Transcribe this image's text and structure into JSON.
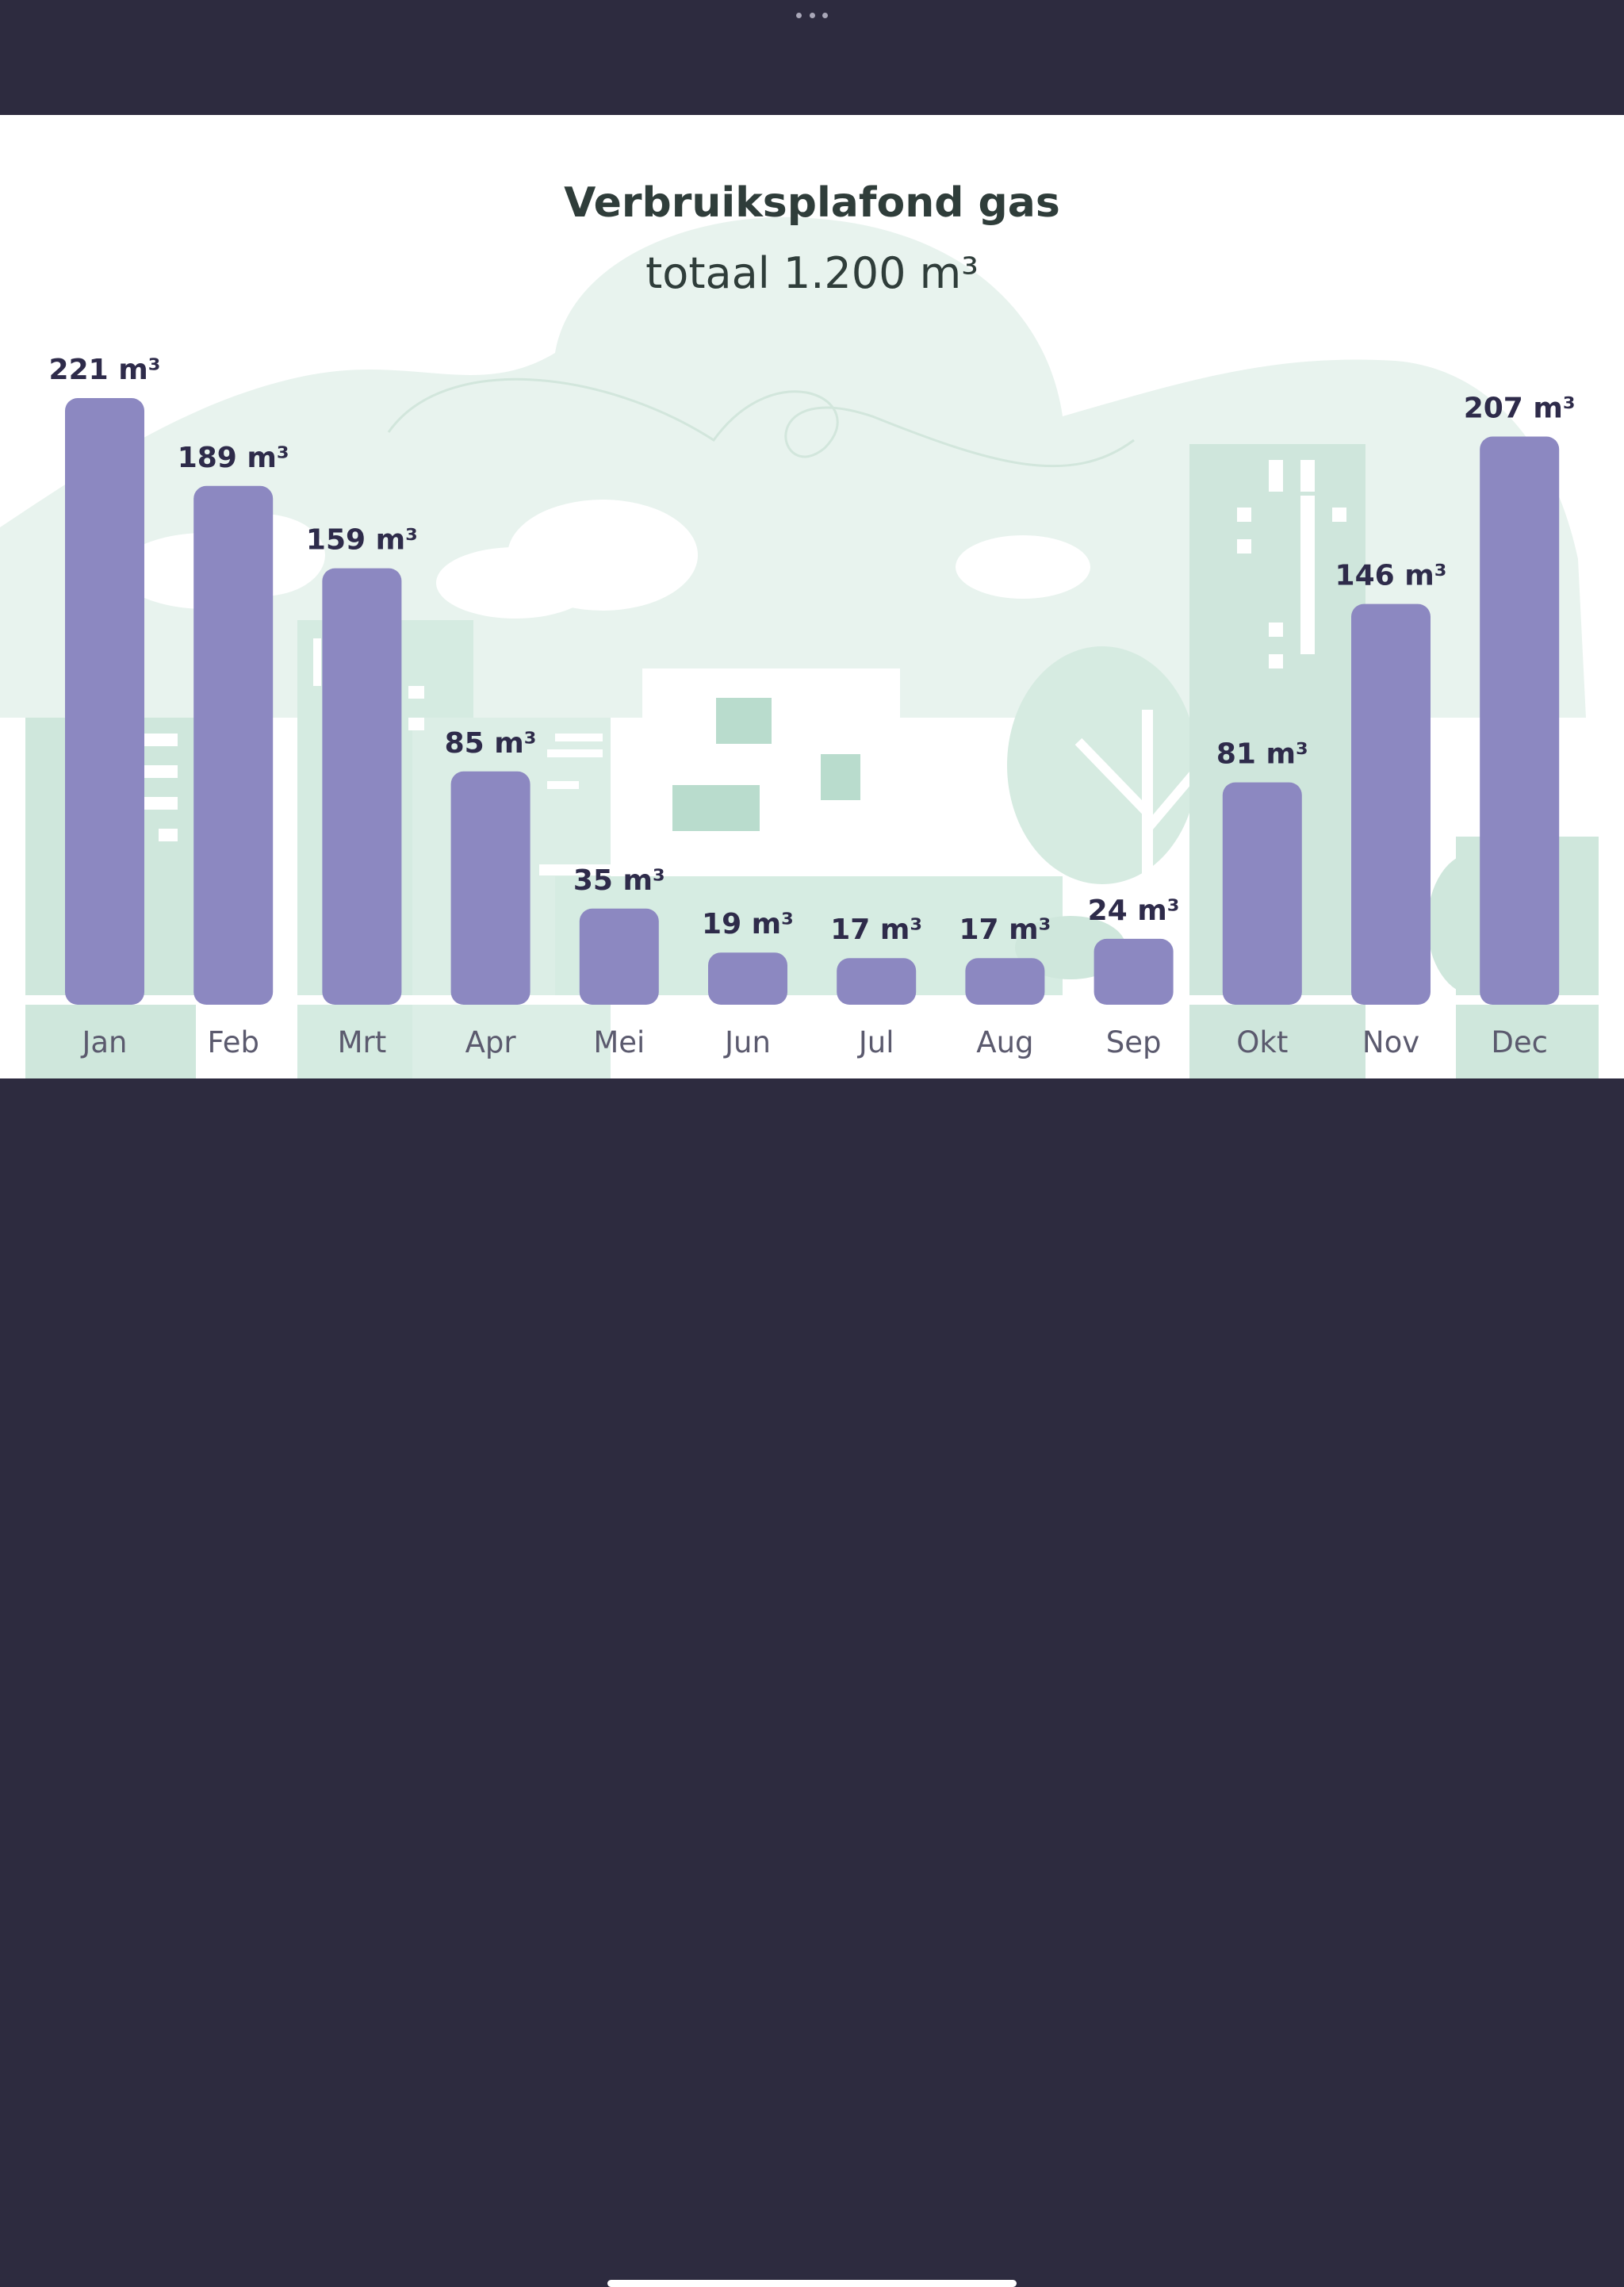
{
  "colors": {
    "frame": "#2d2b3f",
    "bar": "#8c88c1",
    "scenery_light": "#e6f2ec",
    "scenery_mid": "#cde6dc",
    "scenery_dark": "#b6dccd",
    "title": "#2f3d3a",
    "value_label": "#2e2b4a",
    "month_label": "#5b5a6e"
  },
  "chart_data": {
    "type": "bar",
    "title": "Verbruiksplafond gas",
    "subtitle": "totaal 1.200 m³",
    "unit": "m³",
    "categories": [
      "Jan",
      "Feb",
      "Mrt",
      "Apr",
      "Mei",
      "Jun",
      "Jul",
      "Aug",
      "Sep",
      "Okt",
      "Nov",
      "Dec"
    ],
    "values": [
      221,
      189,
      159,
      85,
      35,
      19,
      17,
      17,
      24,
      81,
      146,
      207
    ],
    "value_labels": [
      "221 m³",
      "189 m³",
      "159 m³",
      "85 m³",
      "35 m³",
      "19 m³",
      "17 m³",
      "17 m³",
      "24 m³",
      "81 m³",
      "146 m³",
      "207 m³"
    ],
    "xlabel": "",
    "ylabel": "",
    "ylim": [
      0,
      221
    ],
    "grid": false,
    "legend": "none"
  }
}
